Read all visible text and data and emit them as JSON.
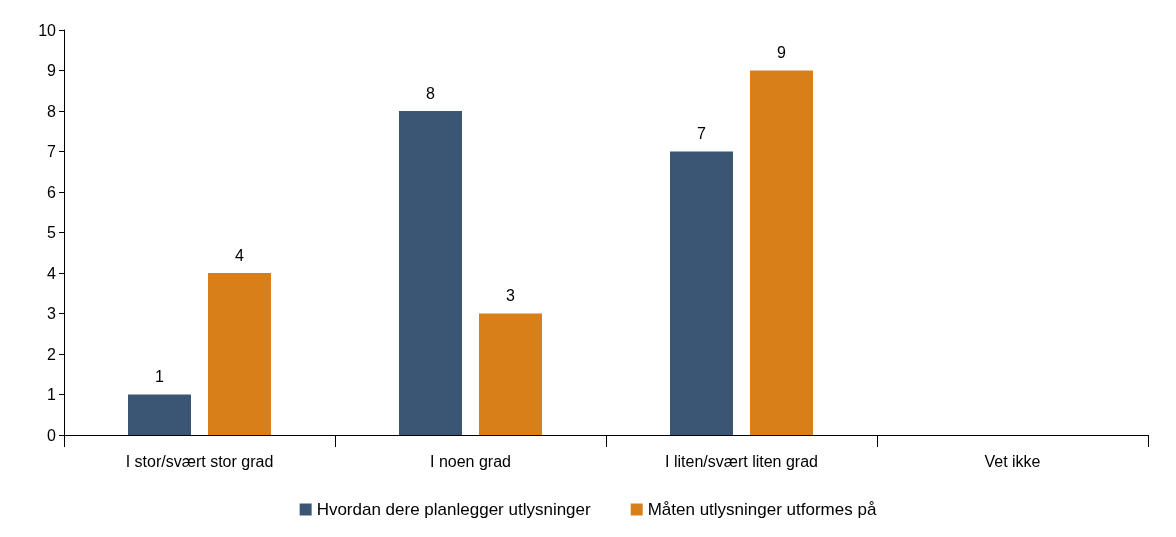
{
  "chart_data": {
    "type": "bar",
    "categories": [
      "I stor/svært stor grad",
      "I noen grad",
      "I liten/svært liten grad",
      "Vet ikke"
    ],
    "series": [
      {
        "name": "Hvordan dere planlegger utlysninger",
        "color": "#3b5675",
        "values": [
          1,
          8,
          7,
          null
        ]
      },
      {
        "name": "Måten utlysninger utformes på",
        "color": "#d97f1a",
        "values": [
          4,
          3,
          9,
          null
        ]
      }
    ],
    "ylim": [
      0,
      10
    ],
    "yticks": [
      0,
      1,
      2,
      3,
      4,
      5,
      6,
      7,
      8,
      9,
      10
    ],
    "grid": false,
    "legend": "bottom",
    "data_labels": true
  }
}
